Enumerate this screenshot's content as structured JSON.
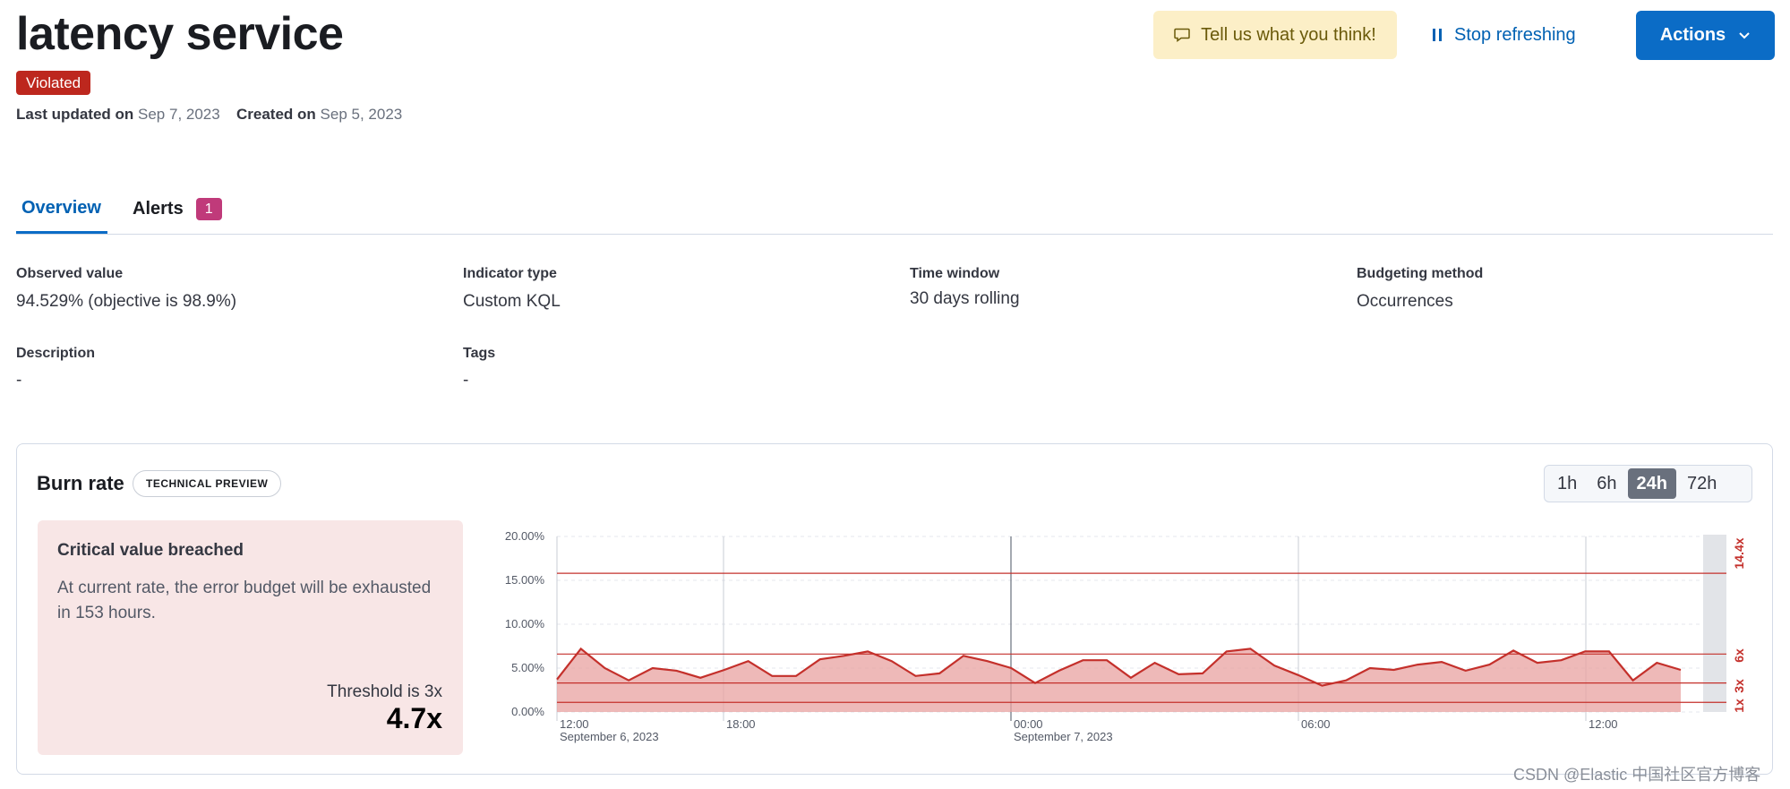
{
  "header": {
    "title": "latency service",
    "status_badge": "Violated",
    "last_updated_label": "Last updated on",
    "last_updated_value": "Sep 7, 2023",
    "created_label": "Created on",
    "created_value": "Sep 5, 2023",
    "feedback_label": "Tell us what you think!",
    "stop_refresh_label": "Stop refreshing",
    "actions_label": "Actions"
  },
  "tabs": {
    "overview": "Overview",
    "alerts": "Alerts",
    "alerts_count": "1"
  },
  "fields": [
    {
      "title": "Observed value",
      "value": "94.529% (objective is 98.9%)"
    },
    {
      "title": "Indicator type",
      "value": "Custom KQL"
    },
    {
      "title": "Time window",
      "value": "30 days rolling"
    },
    {
      "title": "Budgeting method",
      "value": "Occurrences"
    },
    {
      "title": "Description",
      "value": "-"
    },
    {
      "title": "Tags",
      "value": "-"
    }
  ],
  "burn_rate": {
    "title": "Burn rate",
    "preview_badge": "TECHNICAL PREVIEW",
    "ranges": [
      "1h",
      "6h",
      "24h",
      "72h"
    ],
    "active_range": "24h",
    "card": {
      "title": "Critical value breached",
      "text": "At current rate, the error budget will be exhausted in 153 hours.",
      "threshold_text": "Threshold is 3x",
      "value": "4.7x"
    }
  },
  "chart_data": {
    "type": "area",
    "series_color": "#c4302b",
    "y_ticks": [
      "20.00%",
      "15.00%",
      "10.00%",
      "5.00%",
      "0.00%"
    ],
    "ylim": [
      0,
      20
    ],
    "x_tick_labels": [
      "12:00",
      "18:00",
      "00:00",
      "06:00",
      "12:00"
    ],
    "x_date_labels": [
      "September 6, 2023",
      "",
      "September 7, 2023",
      "",
      ""
    ],
    "threshold_lines": [
      {
        "label": "14.4x",
        "value": 15.8
      },
      {
        "label": "6x",
        "value": 6.6
      },
      {
        "label": "3x",
        "value": 3.3
      },
      {
        "label": "1x",
        "value": 1.1
      }
    ],
    "values": [
      3.7,
      7.2,
      5.0,
      3.6,
      5.0,
      4.7,
      3.9,
      4.8,
      5.8,
      4.1,
      4.1,
      6.0,
      6.4,
      6.9,
      5.8,
      4.1,
      4.4,
      6.4,
      5.8,
      5.0,
      3.3,
      4.7,
      5.9,
      5.9,
      3.9,
      5.6,
      4.3,
      4.4,
      6.9,
      7.2,
      5.3,
      4.2,
      3.0,
      3.6,
      5.0,
      4.8,
      5.4,
      5.7,
      4.7,
      5.4,
      7.0,
      5.6,
      5.9,
      6.9,
      6.9,
      3.6,
      5.6,
      4.8
    ]
  },
  "watermark": "CSDN @Elastic 中国社区官方博客"
}
